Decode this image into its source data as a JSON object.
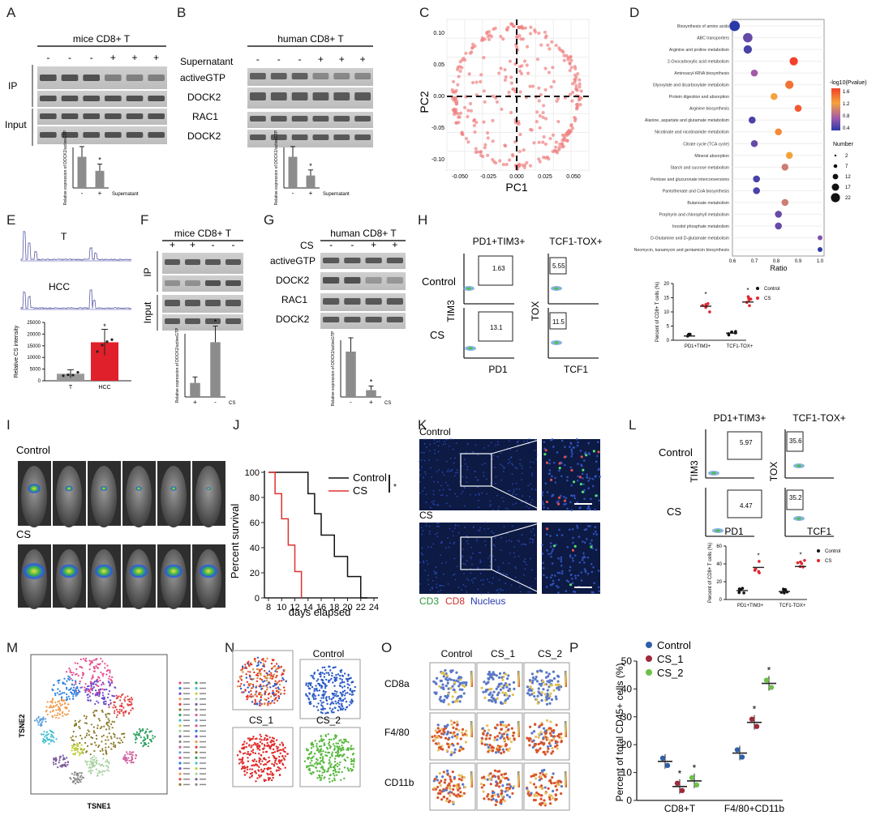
{
  "panels": {
    "A": {
      "letter": "A",
      "title": "mice CD8+ T",
      "signs": [
        "-",
        "-",
        "-",
        "+",
        "+",
        "+"
      ],
      "row_labels": [
        "IP",
        "Input"
      ],
      "bar_ylabel": "Relative expression of DOCK2/activeGTP",
      "bar_xlabel": "Supernatant",
      "bar_ticks": [
        "-",
        "+"
      ],
      "bar_values": [
        1.0,
        0.55
      ],
      "star": "*"
    },
    "B": {
      "letter": "B",
      "title": "human CD8+ T",
      "signs": [
        "-",
        "-",
        "-",
        "+",
        "+",
        "+"
      ],
      "blot_labels": [
        "Supernatant",
        "activeGTP",
        "DOCK2",
        "RAC1",
        "DOCK2"
      ],
      "bar_ylabel": "Relative expression of DOCK2/activeGTP",
      "bar_xlabel": "Supernatant",
      "bar_ticks": [
        "-",
        "+"
      ],
      "bar_values": [
        1.0,
        0.4
      ],
      "star": "*"
    },
    "C": {
      "letter": "C",
      "xlabel": "PC1",
      "ylabel": "PC2",
      "xticks": [
        "-0.050",
        "-0.025",
        "0.000",
        "0.025",
        "0.050"
      ],
      "yticks": [
        "0.10",
        "0.05",
        "0.00",
        "-0.05",
        "-0.10"
      ]
    },
    "D": {
      "letter": "D",
      "xlabel": "Ratio",
      "xticks": [
        "0.6",
        "0.7",
        "0.8",
        "0.9",
        "1.0"
      ],
      "pathways": [
        "Biosynthesis of amino acids",
        "ABC transporters",
        "Arginine and proline metabolism",
        "2-Oxocarboxylic acid metabolism",
        "Aminoacyl-tRNA biosynthesis",
        "Glyoxylate and dicarboxylate metabolism",
        "Protein digestion and absorption",
        "Arginine biosynthesis",
        "Alanine, aspartate and glutamate metabolism",
        "Nicotinate and nicotinamide metabolism",
        "Citrate cycle (TCA cycle)",
        "Mineral absorption",
        "Starch and sucrose metabolism",
        "Pentose and glucuronate interconversions",
        "Pantothenate and CoA biosynthesis",
        "Butanoate metabolism",
        "Porphyrin and chlorophyll metabolism",
        "Inositol phosphate metabolism",
        "D-Glutamine and D-glutamate metabolism",
        "Neomycin, kanamycin and gentamicin biosynthesis"
      ],
      "ratios": [
        0.61,
        0.67,
        0.67,
        0.88,
        0.7,
        0.86,
        0.79,
        0.9,
        0.69,
        0.81,
        0.7,
        0.86,
        0.84,
        0.71,
        0.71,
        0.84,
        0.81,
        0.81,
        1.0,
        1.0
      ],
      "neglogp": [
        0.4,
        0.6,
        0.5,
        1.6,
        0.8,
        1.4,
        1.2,
        1.5,
        0.5,
        1.3,
        0.6,
        1.2,
        1.0,
        0.5,
        0.5,
        1.0,
        0.6,
        0.6,
        0.7,
        0.4
      ],
      "sizes": [
        22,
        17,
        12,
        12,
        7,
        12,
        7,
        7,
        7,
        7,
        7,
        7,
        7,
        7,
        7,
        7,
        7,
        7,
        2,
        2
      ],
      "color_title": "-log10(Pvalue)",
      "color_ticks": [
        "1.6",
        "1.2",
        "0.8",
        "0.4"
      ],
      "size_title": "Number",
      "size_ticks": [
        "2",
        "7",
        "12",
        "17",
        "22"
      ]
    },
    "E": {
      "letter": "E",
      "trace_labels": [
        "T",
        "HCC"
      ],
      "ylabel": "Relative CS intensity",
      "yticks": [
        "25000",
        "20000",
        "15000",
        "10000",
        "5000",
        "0"
      ],
      "categories": [
        "T",
        "HCC"
      ],
      "values": [
        3000,
        16500
      ],
      "star": "*"
    },
    "F": {
      "letter": "F",
      "title": "mice CD8+ T",
      "signs": [
        "+",
        "+",
        "-",
        "-"
      ],
      "row_labels": [
        "IP",
        "Input"
      ],
      "bar_ylabel": "Relative expression of DOCK2/activeGTP",
      "bar_ticks": [
        "+",
        "-"
      ],
      "bar_xlabel": "CS",
      "bar_values": [
        1.0,
        3.9
      ],
      "star": "*"
    },
    "G": {
      "letter": "G",
      "title": "human CD8+ T",
      "signs": [
        "-",
        "-",
        "+",
        "+"
      ],
      "blot_labels": [
        "CS",
        "activeGTP",
        "DOCK2",
        "RAC1",
        "DOCK2"
      ],
      "bar_ylabel": "Relative expression of DOCK2/activeGTP",
      "bar_ticks": [
        "-",
        "+"
      ],
      "bar_xlabel": "CS",
      "bar_values": [
        1.0,
        0.15
      ],
      "star": "*"
    },
    "H": {
      "letter": "H",
      "col_titles": [
        "PD1+TIM3+",
        "TCF1-TOX+"
      ],
      "row_labels": [
        "Control",
        "CS"
      ],
      "axes": [
        "TIM3",
        "PD1",
        "TOX",
        "TCF1"
      ],
      "gates": [
        "1.63",
        "5.55",
        "13.1",
        "11.5"
      ],
      "scatter_ylabel": "Percent of CD8+ T cells (%)",
      "scatter_yticks": [
        "20",
        "15",
        "10",
        "5",
        "0"
      ],
      "scatter_categories": [
        "PD1+TIM3+",
        "TCF1-TOX+"
      ],
      "legend": [
        "Control",
        "CS"
      ],
      "means": {
        "Control": [
          1.5,
          2.5
        ],
        "CS": [
          12,
          13.5
        ]
      },
      "star": "*"
    },
    "I": {
      "letter": "I",
      "row_labels": [
        "Control",
        "CS"
      ]
    },
    "J": {
      "letter": "J",
      "xlabel": "days elapsed",
      "ylabel": "Percent survival",
      "xticks": [
        "8",
        "10",
        "12",
        "14",
        "16",
        "18",
        "20",
        "22",
        "24"
      ],
      "yticks": [
        "100",
        "80",
        "60",
        "40",
        "20",
        "0"
      ],
      "legend": [
        "Control",
        "CS"
      ],
      "star": "*",
      "series": [
        {
          "name": "Control",
          "color": "#111111",
          "x": [
            8,
            14,
            14,
            15,
            15,
            16,
            16,
            18,
            18,
            20,
            20,
            22,
            22,
            23
          ],
          "y": [
            100,
            100,
            83,
            83,
            67,
            67,
            50,
            50,
            33,
            33,
            17,
            17,
            0,
            0
          ]
        },
        {
          "name": "CS",
          "color": "#e03030",
          "x": [
            8,
            9,
            9,
            10,
            10,
            11,
            11,
            12,
            12,
            13,
            13
          ],
          "y": [
            100,
            100,
            83,
            83,
            63,
            63,
            42,
            42,
            21,
            21,
            0
          ]
        }
      ]
    },
    "K": {
      "letter": "K",
      "row_labels": [
        "Control",
        "CS"
      ],
      "legend": [
        "CD3",
        "CD8",
        "Nucleus"
      ]
    },
    "L": {
      "letter": "L",
      "col_titles": [
        "PD1+TIM3+",
        "TCF1-TOX+"
      ],
      "row_labels": [
        "Control",
        "CS"
      ],
      "axes": [
        "TIM3",
        "PD1",
        "TOX",
        "TCF1"
      ],
      "gates": [
        "5.97",
        "4.47",
        "35.6",
        "35.2"
      ],
      "scatter_ylabel": "Percent of CD8+ T cells (%)",
      "scatter_yticks": [
        "60",
        "40",
        "20",
        "0"
      ],
      "scatter_categories": [
        "PD1+TIM3+",
        "TCF1-TOX+"
      ],
      "legend": [
        "Control",
        "CS"
      ],
      "means": {
        "Control": [
          10,
          9
        ],
        "CS": [
          36,
          37
        ]
      },
      "star": "*"
    },
    "M": {
      "letter": "M",
      "xlabel": "TSNE1",
      "ylabel": "TSNE2"
    },
    "N": {
      "letter": "N",
      "titles": [
        "Control",
        "CS_1",
        "CS_2"
      ]
    },
    "O": {
      "letter": "O",
      "col_titles": [
        "Control",
        "CS_1",
        "CS_2"
      ],
      "row_labels": [
        "CD8a",
        "F4/80",
        "CD11b"
      ]
    },
    "P": {
      "letter": "P",
      "ylabel": "Percent of total CD45+ cells (%)",
      "yticks": [
        "50",
        "40",
        "30",
        "20",
        "10",
        "0"
      ],
      "categories": [
        "CD8+T",
        "F4/80+CD11b"
      ],
      "legend": [
        "Control",
        "CS_1",
        "CS_2"
      ],
      "star": "*",
      "colors": [
        "#2e5fa8",
        "#a02a3a",
        "#6ec04a"
      ],
      "means": [
        [
          14,
          5,
          7
        ],
        [
          17,
          28,
          42
        ]
      ]
    }
  },
  "chart_data": [
    {
      "type": "bar",
      "panel": "E",
      "categories": [
        "T",
        "HCC"
      ],
      "values": [
        3000,
        16500
      ],
      "ylabel": "Relative CS intensity",
      "ylim": [
        0,
        25000
      ]
    },
    {
      "type": "line",
      "panel": "J",
      "xlabel": "days elapsed",
      "ylabel": "Percent survival",
      "xlim": [
        8,
        24
      ],
      "ylim": [
        0,
        100
      ],
      "series": [
        {
          "name": "Control",
          "x": [
            8,
            14,
            15,
            16,
            18,
            20,
            22,
            23
          ],
          "y": [
            100,
            83,
            67,
            50,
            33,
            17,
            0,
            0
          ]
        },
        {
          "name": "CS",
          "x": [
            8,
            9,
            10,
            11,
            12,
            13
          ],
          "y": [
            100,
            83,
            63,
            42,
            21,
            0
          ]
        }
      ]
    },
    {
      "type": "scatter",
      "panel": "P",
      "categories": [
        "CD8+T",
        "F4/80+CD11b"
      ],
      "ylabel": "Percent of total CD45+ cells (%)",
      "ylim": [
        0,
        50
      ],
      "series": [
        {
          "name": "Control",
          "values": [
            14,
            17
          ]
        },
        {
          "name": "CS_1",
          "values": [
            5,
            28
          ]
        },
        {
          "name": "CS_2",
          "values": [
            7,
            42
          ]
        }
      ]
    }
  ]
}
